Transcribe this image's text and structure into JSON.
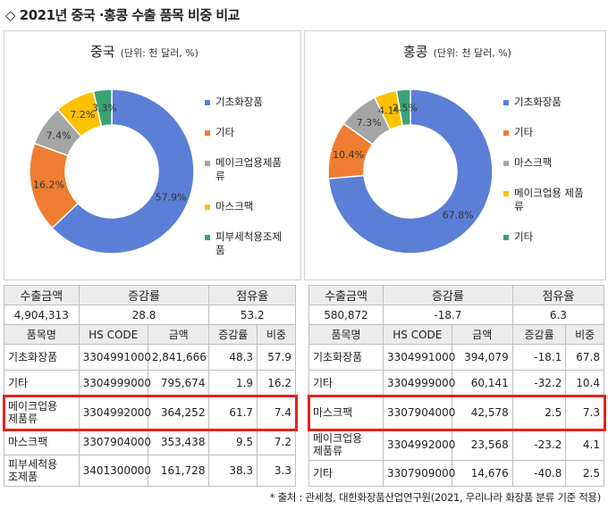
{
  "page_title": "◇ 2021년 중국 ·홍콩 수출 품목 비중 비교",
  "source_note": "* 출처 : 관세청, 대한화장품산업연구원(2021, 우리나라 화장품 분류 기준 적용)",
  "colors": {
    "blue": "#5b7fd6",
    "orange": "#ee7d31",
    "gray": "#a5a5a5",
    "yellow": "#fdc100",
    "green": "#3aa376",
    "highlight": "#e2231a"
  },
  "chart_data": [
    {
      "type": "pie",
      "title": "중국",
      "unit": "(단위: 천 달러, %)",
      "legend_position": "right",
      "labels": [
        "기초화장품",
        "기타",
        "메이크업용제품류",
        "마스크팩",
        "피부세척용조제품"
      ],
      "legend": [
        "기초화장품",
        "기타",
        "메이크업용제품\n류",
        "마스크팩",
        "피부세척용조제\n품"
      ],
      "values": [
        57.9,
        16.2,
        7.4,
        7.2,
        3.3
      ],
      "value_labels": [
        "57.9%",
        "16.2%",
        "7.4%",
        "7.2%",
        "3.3%"
      ],
      "colors": [
        "#5b7fd6",
        "#ee7d31",
        "#a5a5a5",
        "#fdc100",
        "#3aa376"
      ]
    },
    {
      "type": "pie",
      "title": "홍콩",
      "unit": "(단위: 천 달러, %)",
      "legend_position": "right",
      "labels": [
        "기초화장품",
        "기타",
        "마스크팩",
        "메이크업용 제품류",
        "기타"
      ],
      "legend": [
        "기초화장품",
        "기타",
        "마스크팩",
        "메이크업용 제품\n류",
        "기타"
      ],
      "values": [
        67.8,
        10.4,
        7.3,
        4.1,
        2.5
      ],
      "value_labels": [
        "67.8%",
        "10.4%",
        "7.3%",
        "4.1%",
        "2.5%"
      ],
      "colors": [
        "#5b7fd6",
        "#ee7d31",
        "#a5a5a5",
        "#fdc100",
        "#3aa376"
      ]
    }
  ],
  "tables": {
    "china": {
      "summary_headers": [
        "수출금액",
        "증감률",
        "점유율"
      ],
      "summary_values": [
        "4,904,313",
        "28.8",
        "53.2"
      ],
      "col_headers": [
        "품목명",
        "HS CODE",
        "금액",
        "증감률",
        "비중"
      ],
      "rows": [
        [
          "기초화장품",
          "3304991000",
          "2,841,666",
          "48.3",
          "57.9"
        ],
        [
          "기타",
          "3304999000",
          "795,674",
          "1.9",
          "16.2"
        ],
        [
          "메이크업용\n제품류",
          "3304992000",
          "364,252",
          "61.7",
          "7.4"
        ],
        [
          "마스크팩",
          "3307904000",
          "353,438",
          "9.5",
          "7.2"
        ],
        [
          "피부세척용\n조제품",
          "3401300000",
          "161,728",
          "38.3",
          "3.3"
        ]
      ]
    },
    "hongkong": {
      "summary_headers": [
        "수출금액",
        "증감률",
        "점유율"
      ],
      "summary_values": [
        "580,872",
        "-18.7",
        "6.3"
      ],
      "col_headers": [
        "품목명",
        "HS CODE",
        "금액",
        "증감률",
        "비중"
      ],
      "rows": [
        [
          "기초화장품",
          "3304991000",
          "394,079",
          "-18.1",
          "67.8"
        ],
        [
          "기타",
          "3304999000",
          "60,141",
          "-32.2",
          "10.4"
        ],
        [
          "마스크팩",
          "3307904000",
          "42,578",
          "2.5",
          "7.3"
        ],
        [
          "메이크업용\n제품류",
          "3304992000",
          "23,568",
          "-23.2",
          "4.1"
        ],
        [
          "기타",
          "3307909000",
          "14,676",
          "-40.8",
          "2.5"
        ]
      ]
    }
  }
}
